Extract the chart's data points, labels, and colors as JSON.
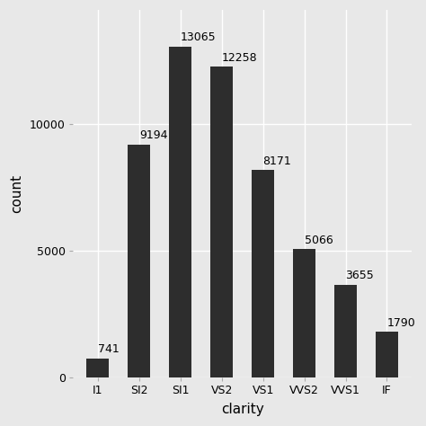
{
  "categories": [
    "I1",
    "SI2",
    "SI1",
    "VS2",
    "VS1",
    "VVS2",
    "VVS1",
    "IF"
  ],
  "values": [
    741,
    9194,
    13065,
    12258,
    8171,
    5066,
    3655,
    1790
  ],
  "bar_color": "#2d2d2d",
  "background_color": "#e8e8e8",
  "panel_background": "#e8e8e8",
  "xlabel": "clarity",
  "ylabel": "count",
  "ylim": [
    0,
    14500
  ],
  "yticks": [
    0,
    5000,
    10000
  ],
  "axis_label_fontsize": 11,
  "tick_fontsize": 9,
  "bar_label_fontsize": 9,
  "grid_color": "#ffffff",
  "grid_linewidth": 1.0,
  "bar_width": 0.55
}
